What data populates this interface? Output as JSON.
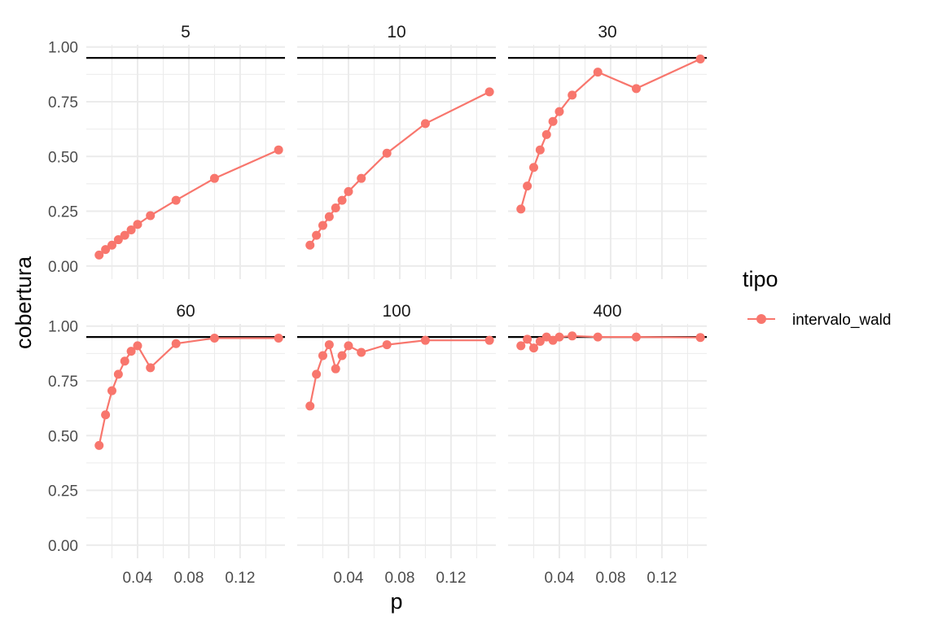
{
  "chart_data": {
    "type": "line",
    "xlabel": "p",
    "ylabel": "cobertura",
    "xlim": [
      0.0,
      0.155
    ],
    "ylim": [
      -0.06,
      1.01
    ],
    "x_ticks": [
      0.04,
      0.08,
      0.12
    ],
    "x_tick_labels": [
      "0.04",
      "0.08",
      "0.12"
    ],
    "y_ticks": [
      0.0,
      0.25,
      0.5,
      0.75,
      1.0
    ],
    "y_tick_labels": [
      "0.00",
      "0.25",
      "0.50",
      "0.75",
      "1.00"
    ],
    "reference_line": 0.95,
    "grid": true,
    "facet_layout": {
      "rows": 2,
      "cols": 3
    },
    "legend": {
      "title": "tipo",
      "position": "right",
      "entries": [
        {
          "name": "intervalo_wald",
          "color": "#F8766D"
        }
      ]
    },
    "x": [
      0.01,
      0.015,
      0.02,
      0.025,
      0.03,
      0.035,
      0.04,
      0.05,
      0.07,
      0.1,
      0.15
    ],
    "panels": [
      {
        "title": "5",
        "values": [
          0.05,
          0.075,
          0.095,
          0.12,
          0.14,
          0.165,
          0.19,
          0.23,
          0.3,
          0.4,
          0.53
        ]
      },
      {
        "title": "10",
        "values": [
          0.095,
          0.14,
          0.185,
          0.225,
          0.265,
          0.3,
          0.34,
          0.4,
          0.515,
          0.65,
          0.795
        ]
      },
      {
        "title": "30",
        "values": [
          0.26,
          0.365,
          0.45,
          0.53,
          0.6,
          0.66,
          0.705,
          0.78,
          0.885,
          0.81,
          0.945
        ]
      },
      {
        "title": "60",
        "values": [
          0.455,
          0.595,
          0.705,
          0.78,
          0.84,
          0.885,
          0.91,
          0.81,
          0.92,
          0.945,
          0.945
        ]
      },
      {
        "title": "100",
        "values": [
          0.635,
          0.78,
          0.865,
          0.915,
          0.805,
          0.865,
          0.91,
          0.88,
          0.915,
          0.935,
          0.935
        ]
      },
      {
        "title": "400",
        "values": [
          0.91,
          0.94,
          0.9,
          0.93,
          0.95,
          0.935,
          0.95,
          0.955,
          0.95,
          0.95,
          0.948
        ]
      }
    ],
    "series_color": "#F8766D",
    "reference_color": "#000000",
    "panel_background": "#ffffff",
    "grid_color": "#ebebeb"
  }
}
